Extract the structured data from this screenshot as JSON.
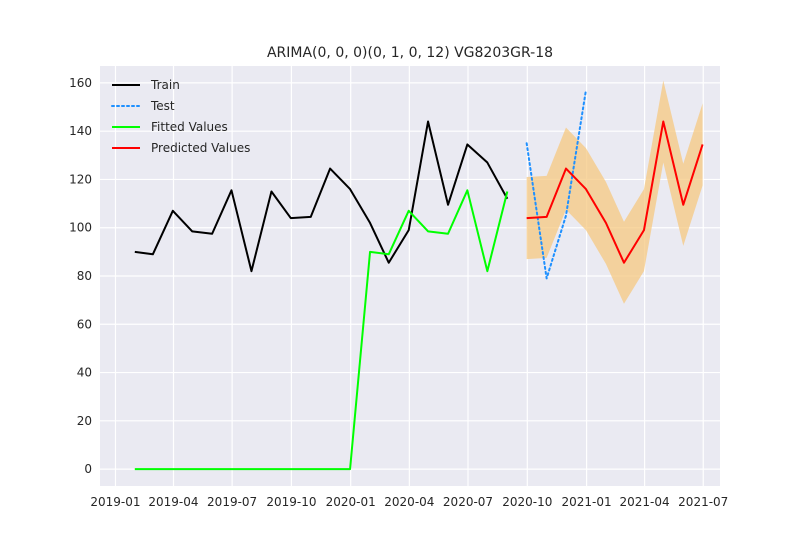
{
  "chart_data": {
    "type": "line",
    "title": "ARIMA(0, 0, 0)(0, 1, 0, 12) VG8203GR-18",
    "xlabel": "",
    "ylabel": "",
    "xlim": [
      "2018-12-08",
      "2021-07-27"
    ],
    "ylim": [
      -7,
      167
    ],
    "y_ticks": [
      0,
      20,
      40,
      60,
      80,
      100,
      120,
      140,
      160
    ],
    "x_ticks": [
      "2019-01",
      "2019-04",
      "2019-07",
      "2019-10",
      "2020-01",
      "2020-04",
      "2020-07",
      "2020-10",
      "2021-01",
      "2021-04",
      "2021-07"
    ],
    "grid": true,
    "legend_position": "top-left",
    "series": [
      {
        "name": "Train",
        "color": "#000000",
        "style": "solid",
        "x": [
          "2019-01-31",
          "2019-02-28",
          "2019-03-31",
          "2019-04-30",
          "2019-05-31",
          "2019-06-30",
          "2019-07-31",
          "2019-08-31",
          "2019-09-30",
          "2019-10-31",
          "2019-11-30",
          "2019-12-31",
          "2020-01-31",
          "2020-02-29",
          "2020-03-31",
          "2020-04-30",
          "2020-05-31",
          "2020-06-30",
          "2020-07-31",
          "2020-08-31"
        ],
        "y": [
          90,
          89,
          107,
          98.5,
          97.5,
          115.5,
          82,
          115,
          104,
          104.5,
          124.5,
          116,
          102,
          85.5,
          99,
          144,
          109.5,
          134.5,
          127,
          112
        ]
      },
      {
        "name": "Test",
        "color": "#1e90ff",
        "style": "dotted",
        "x": [
          "2020-09-30",
          "2020-10-31",
          "2020-11-30",
          "2020-12-31"
        ],
        "y": [
          135,
          79,
          105,
          157
        ]
      },
      {
        "name": "Fitted Values",
        "color": "#00ff00",
        "style": "solid",
        "x": [
          "2019-01-31",
          "2019-02-28",
          "2019-03-31",
          "2019-04-30",
          "2019-05-31",
          "2019-06-30",
          "2019-07-31",
          "2019-08-31",
          "2019-09-30",
          "2019-10-31",
          "2019-11-30",
          "2019-12-31",
          "2020-01-31",
          "2020-02-29",
          "2020-03-31",
          "2020-04-30",
          "2020-05-31",
          "2020-06-30",
          "2020-07-31",
          "2020-08-31"
        ],
        "y": [
          0,
          0,
          0,
          0,
          0,
          0,
          0,
          0,
          0,
          0,
          0,
          0,
          90,
          89,
          107,
          98.5,
          97.5,
          115.5,
          82,
          115
        ]
      },
      {
        "name": "Predicted Values",
        "color": "#ff0000",
        "style": "solid",
        "x": [
          "2020-09-30",
          "2020-10-31",
          "2020-11-30",
          "2020-12-31",
          "2021-01-31",
          "2021-02-28",
          "2021-03-31",
          "2021-04-30",
          "2021-05-31",
          "2021-06-30"
        ],
        "y": [
          104,
          104.5,
          124.5,
          116,
          102,
          85.5,
          99,
          144,
          109.5,
          134.5
        ]
      }
    ],
    "confidence_band": {
      "color": "#f5c880",
      "x": [
        "2020-09-30",
        "2020-10-31",
        "2020-11-30",
        "2020-12-31",
        "2021-01-31",
        "2021-02-28",
        "2021-03-31",
        "2021-04-30",
        "2021-05-31",
        "2021-06-30"
      ],
      "lower": [
        87,
        87.5,
        107.5,
        99,
        85,
        68.5,
        82,
        127,
        92.5,
        117.5
      ],
      "upper": [
        121,
        121.5,
        141.5,
        133,
        119,
        102.5,
        116,
        161,
        126.5,
        151.5
      ]
    }
  }
}
